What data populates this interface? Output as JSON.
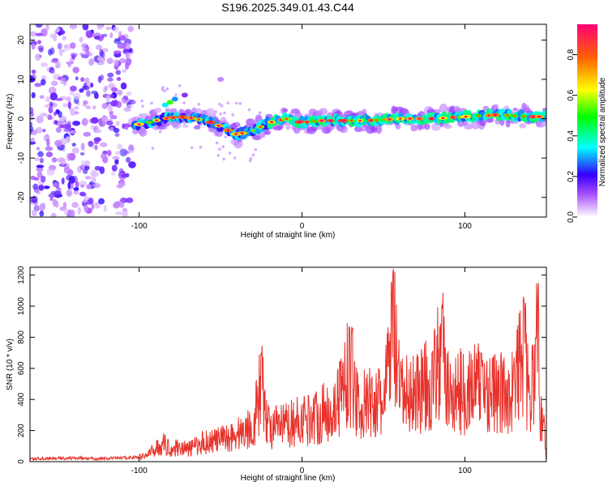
{
  "title": "S196.2025.349.01.43.C44",
  "chart_data": [
    {
      "type": "heatmap",
      "title": "S196.2025.349.01.43.C44",
      "xlabel": "Height of straight line (km)",
      "ylabel": "Frequency (Hz)",
      "xlim": [
        -167,
        150
      ],
      "ylim": [
        -25,
        24
      ],
      "x_ticks": [
        -100,
        0,
        100
      ],
      "y_ticks": [
        -20,
        -10,
        0,
        10,
        20
      ],
      "colorbar": {
        "label": "Normalized spectral amplitude",
        "range": [
          0,
          0.95
        ],
        "ticks": [
          0.0,
          0.2,
          0.4,
          0.6,
          0.8
        ]
      },
      "ridge": {
        "x": [
          -107,
          -95,
          -85,
          -75,
          -65,
          -55,
          -45,
          -40,
          -30,
          -20,
          -10,
          0,
          10,
          20,
          40,
          60,
          80,
          100,
          120,
          140,
          150
        ],
        "freq": [
          -2,
          -1,
          0,
          0.5,
          0,
          -1,
          -3,
          -4,
          -3,
          -1,
          0,
          -1,
          -0.5,
          -0.5,
          -0.5,
          0,
          0,
          0.5,
          1,
          0.5,
          0.5
        ]
      },
      "noise_region_x": [
        -167,
        -104
      ]
    },
    {
      "type": "line",
      "xlabel": "Height of straight line (km)",
      "ylabel": "SNR (10 * v/v)",
      "xlim": [
        -167,
        150
      ],
      "ylim": [
        0,
        1250
      ],
      "x_ticks": [
        -100,
        0,
        100
      ],
      "y_ticks": [
        0,
        200,
        400,
        600,
        800,
        1000,
        1200
      ],
      "series": [
        {
          "name": "SNR",
          "color": "#e8322b",
          "x": [
            -167,
            -140,
            -120,
            -100,
            -95,
            -90,
            -85,
            -80,
            -75,
            -70,
            -60,
            -50,
            -40,
            -30,
            -25,
            -20,
            -10,
            0,
            10,
            20,
            29,
            35,
            40,
            45,
            50,
            56,
            60,
            65,
            70,
            80,
            86,
            90,
            100,
            110,
            120,
            130,
            136,
            140,
            145,
            146,
            148,
            150
          ],
          "y": [
            25,
            30,
            25,
            40,
            60,
            120,
            160,
            110,
            140,
            110,
            180,
            200,
            250,
            320,
            700,
            300,
            330,
            380,
            420,
            480,
            870,
            500,
            520,
            550,
            500,
            1240,
            600,
            600,
            650,
            700,
            1010,
            600,
            650,
            700,
            600,
            650,
            1060,
            500,
            1150,
            400,
            420,
            30
          ]
        }
      ]
    }
  ]
}
